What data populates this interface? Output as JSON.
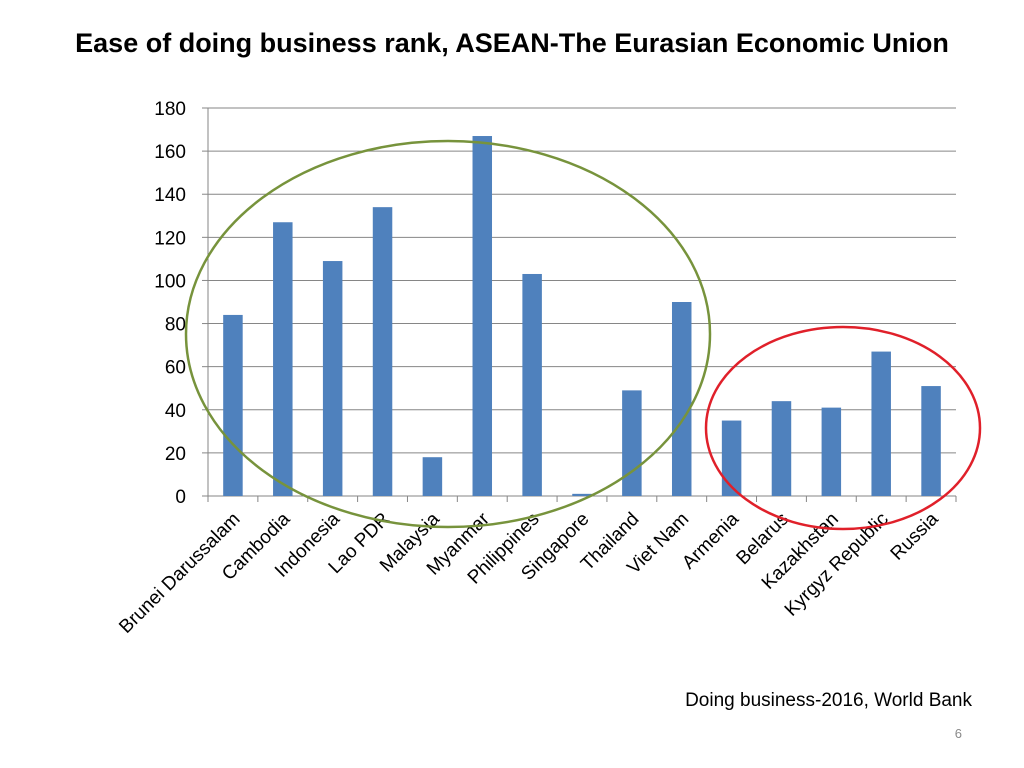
{
  "slide": {
    "title": "Ease of doing business rank, ASEAN-The Eurasian Economic Union",
    "source": "Doing business-2016, World Bank",
    "page_number": "6"
  },
  "colors": {
    "bar": "#4f81bd",
    "asean_circle": "#77933c",
    "eaeu_circle": "#e0202a",
    "grid": "#868686"
  },
  "chart_data": {
    "type": "bar",
    "categories": [
      "Brunei Darussalam",
      "Cambodia",
      "Indonesia",
      "Lao PDR",
      "Malaysia",
      "Myanmar",
      "Philippines",
      "Singapore",
      "Thailand",
      "Viet Nam",
      "Armenia",
      "Belarus",
      "Kazakhstan",
      "Kyrgyz Republic",
      "Russia"
    ],
    "values": [
      84,
      127,
      109,
      134,
      18,
      167,
      103,
      1,
      49,
      90,
      35,
      44,
      41,
      67,
      51
    ],
    "yticks": [
      0,
      20,
      40,
      60,
      80,
      100,
      120,
      140,
      160,
      180
    ],
    "ylim": [
      0,
      180
    ],
    "grid": true,
    "highlight_groups": [
      {
        "label": "ASEAN",
        "first": 0,
        "last": 9
      },
      {
        "label": "Eurasian Economic Union",
        "first": 10,
        "last": 14
      }
    ]
  }
}
